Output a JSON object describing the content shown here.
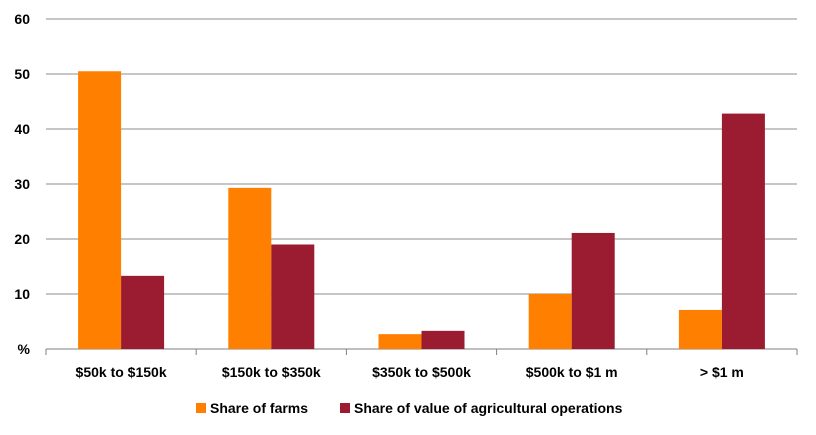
{
  "chart_data": {
    "type": "bar",
    "title": "",
    "xlabel": "",
    "ylabel": "%",
    "ylim": [
      0,
      60
    ],
    "yticks": [
      0,
      10,
      20,
      30,
      40,
      50,
      60
    ],
    "ytick_labels": [
      "%",
      "10",
      "20",
      "30",
      "40",
      "50",
      "60"
    ],
    "grid": true,
    "legend_position": "bottom",
    "categories": [
      "$50k to $150k",
      "$150k to $350k",
      "$350k to $500k",
      "$500k to $1 m",
      "> $1 m"
    ],
    "series": [
      {
        "name": "Share of farms",
        "color": "#FF8000",
        "values": [
          50.5,
          29.3,
          2.7,
          10.0,
          7.1
        ]
      },
      {
        "name": "Share of value of agricultural operations",
        "color": "#9B1B30",
        "values": [
          13.3,
          19.0,
          3.3,
          21.1,
          42.8
        ]
      }
    ]
  }
}
